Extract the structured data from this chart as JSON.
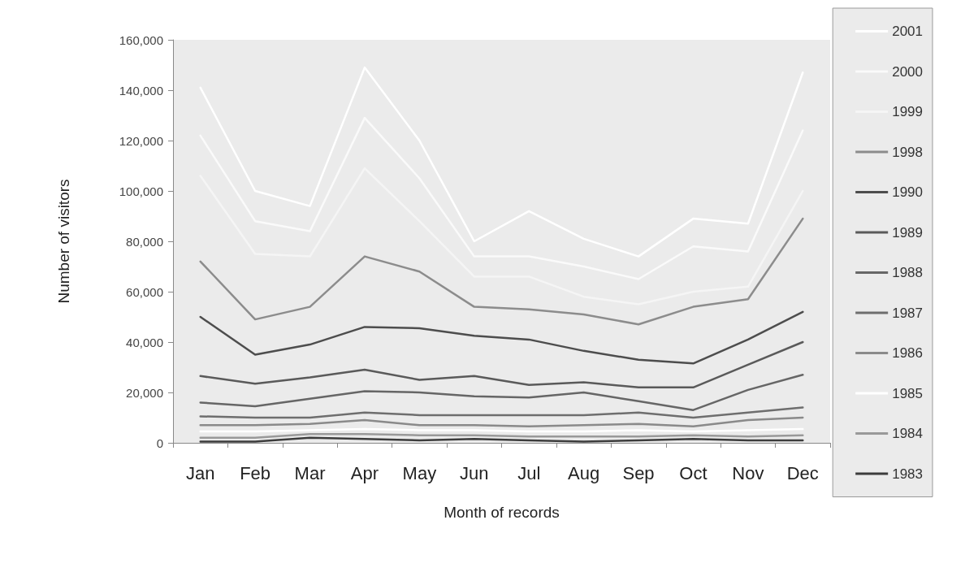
{
  "chart_data": {
    "type": "line",
    "xlabel": "Month of records",
    "ylabel": "Number of visitors",
    "categories": [
      "Jan",
      "Feb",
      "Mar",
      "Apr",
      "May",
      "Jun",
      "Jul",
      "Aug",
      "Sep",
      "Oct",
      "Nov",
      "Dec"
    ],
    "ylim": [
      0,
      160000
    ],
    "yticks": [
      0,
      {
        "value": 20000,
        "label": "20,000"
      },
      {
        "value": 40000,
        "label": "40,000"
      },
      {
        "value": 60000,
        "label": "60,000"
      },
      {
        "value": 80000,
        "label": "80,000"
      },
      {
        "value": 100000,
        "label": "100,000"
      },
      {
        "value": 120000,
        "label": "120,000"
      },
      {
        "value": 140000,
        "label": "140,000"
      },
      {
        "value": 160000,
        "label": "160,000"
      }
    ],
    "grid": false,
    "legend": "right",
    "marker": "none",
    "line_style": "solid",
    "series": [
      {
        "name": "2001",
        "color": "#ffffff",
        "values": [
          141000,
          100000,
          94000,
          149000,
          120000,
          80000,
          92000,
          81000,
          74000,
          89000,
          87000,
          147000
        ]
      },
      {
        "name": "2000",
        "color": "#fafafa",
        "values": [
          122000,
          88000,
          84000,
          129000,
          105000,
          74000,
          74000,
          70000,
          65000,
          78000,
          76000,
          124000
        ]
      },
      {
        "name": "1999",
        "color": "#f5f5f5",
        "values": [
          106000,
          75000,
          74000,
          109000,
          88000,
          66000,
          66000,
          58000,
          55000,
          60000,
          62000,
          100000
        ]
      },
      {
        "name": "1998",
        "color": "#8c8c8c",
        "values": [
          72000,
          49000,
          54000,
          74000,
          68000,
          54000,
          53000,
          51000,
          47000,
          54000,
          57000,
          89000
        ]
      },
      {
        "name": "1990",
        "color": "#4d4d4d",
        "values": [
          50000,
          35000,
          39000,
          46000,
          45500,
          42500,
          41000,
          36500,
          33000,
          31500,
          41000,
          52000
        ]
      },
      {
        "name": "1989",
        "color": "#5a5a5a",
        "values": [
          26500,
          23500,
          26000,
          29000,
          25000,
          26500,
          23000,
          24000,
          22000,
          22000,
          31000,
          40000
        ]
      },
      {
        "name": "1988",
        "color": "#666666",
        "values": [
          16000,
          14500,
          17500,
          20500,
          20000,
          18500,
          18000,
          20000,
          16500,
          13000,
          21000,
          27000
        ]
      },
      {
        "name": "1987",
        "color": "#6e6e6e",
        "values": [
          10500,
          10000,
          10000,
          12000,
          11000,
          11000,
          11000,
          11000,
          12000,
          10000,
          12000,
          14000
        ]
      },
      {
        "name": "1986",
        "color": "#8a8a8a",
        "values": [
          7000,
          7000,
          7500,
          9000,
          7000,
          7000,
          6500,
          7000,
          7500,
          6500,
          9000,
          10000
        ]
      },
      {
        "name": "1985",
        "color": "#ffffff",
        "values": [
          4500,
          4500,
          5000,
          5500,
          5000,
          5000,
          4500,
          4500,
          5000,
          4500,
          5000,
          5500
        ]
      },
      {
        "name": "1984",
        "color": "#999999",
        "values": [
          2000,
          2000,
          3500,
          3500,
          3000,
          3000,
          2500,
          2500,
          2500,
          3000,
          2500,
          3000
        ]
      },
      {
        "name": "1983",
        "color": "#3c3c3c",
        "values": [
          500,
          500,
          2000,
          1500,
          1000,
          1500,
          1000,
          500,
          1000,
          1500,
          1000,
          1000
        ]
      }
    ]
  }
}
